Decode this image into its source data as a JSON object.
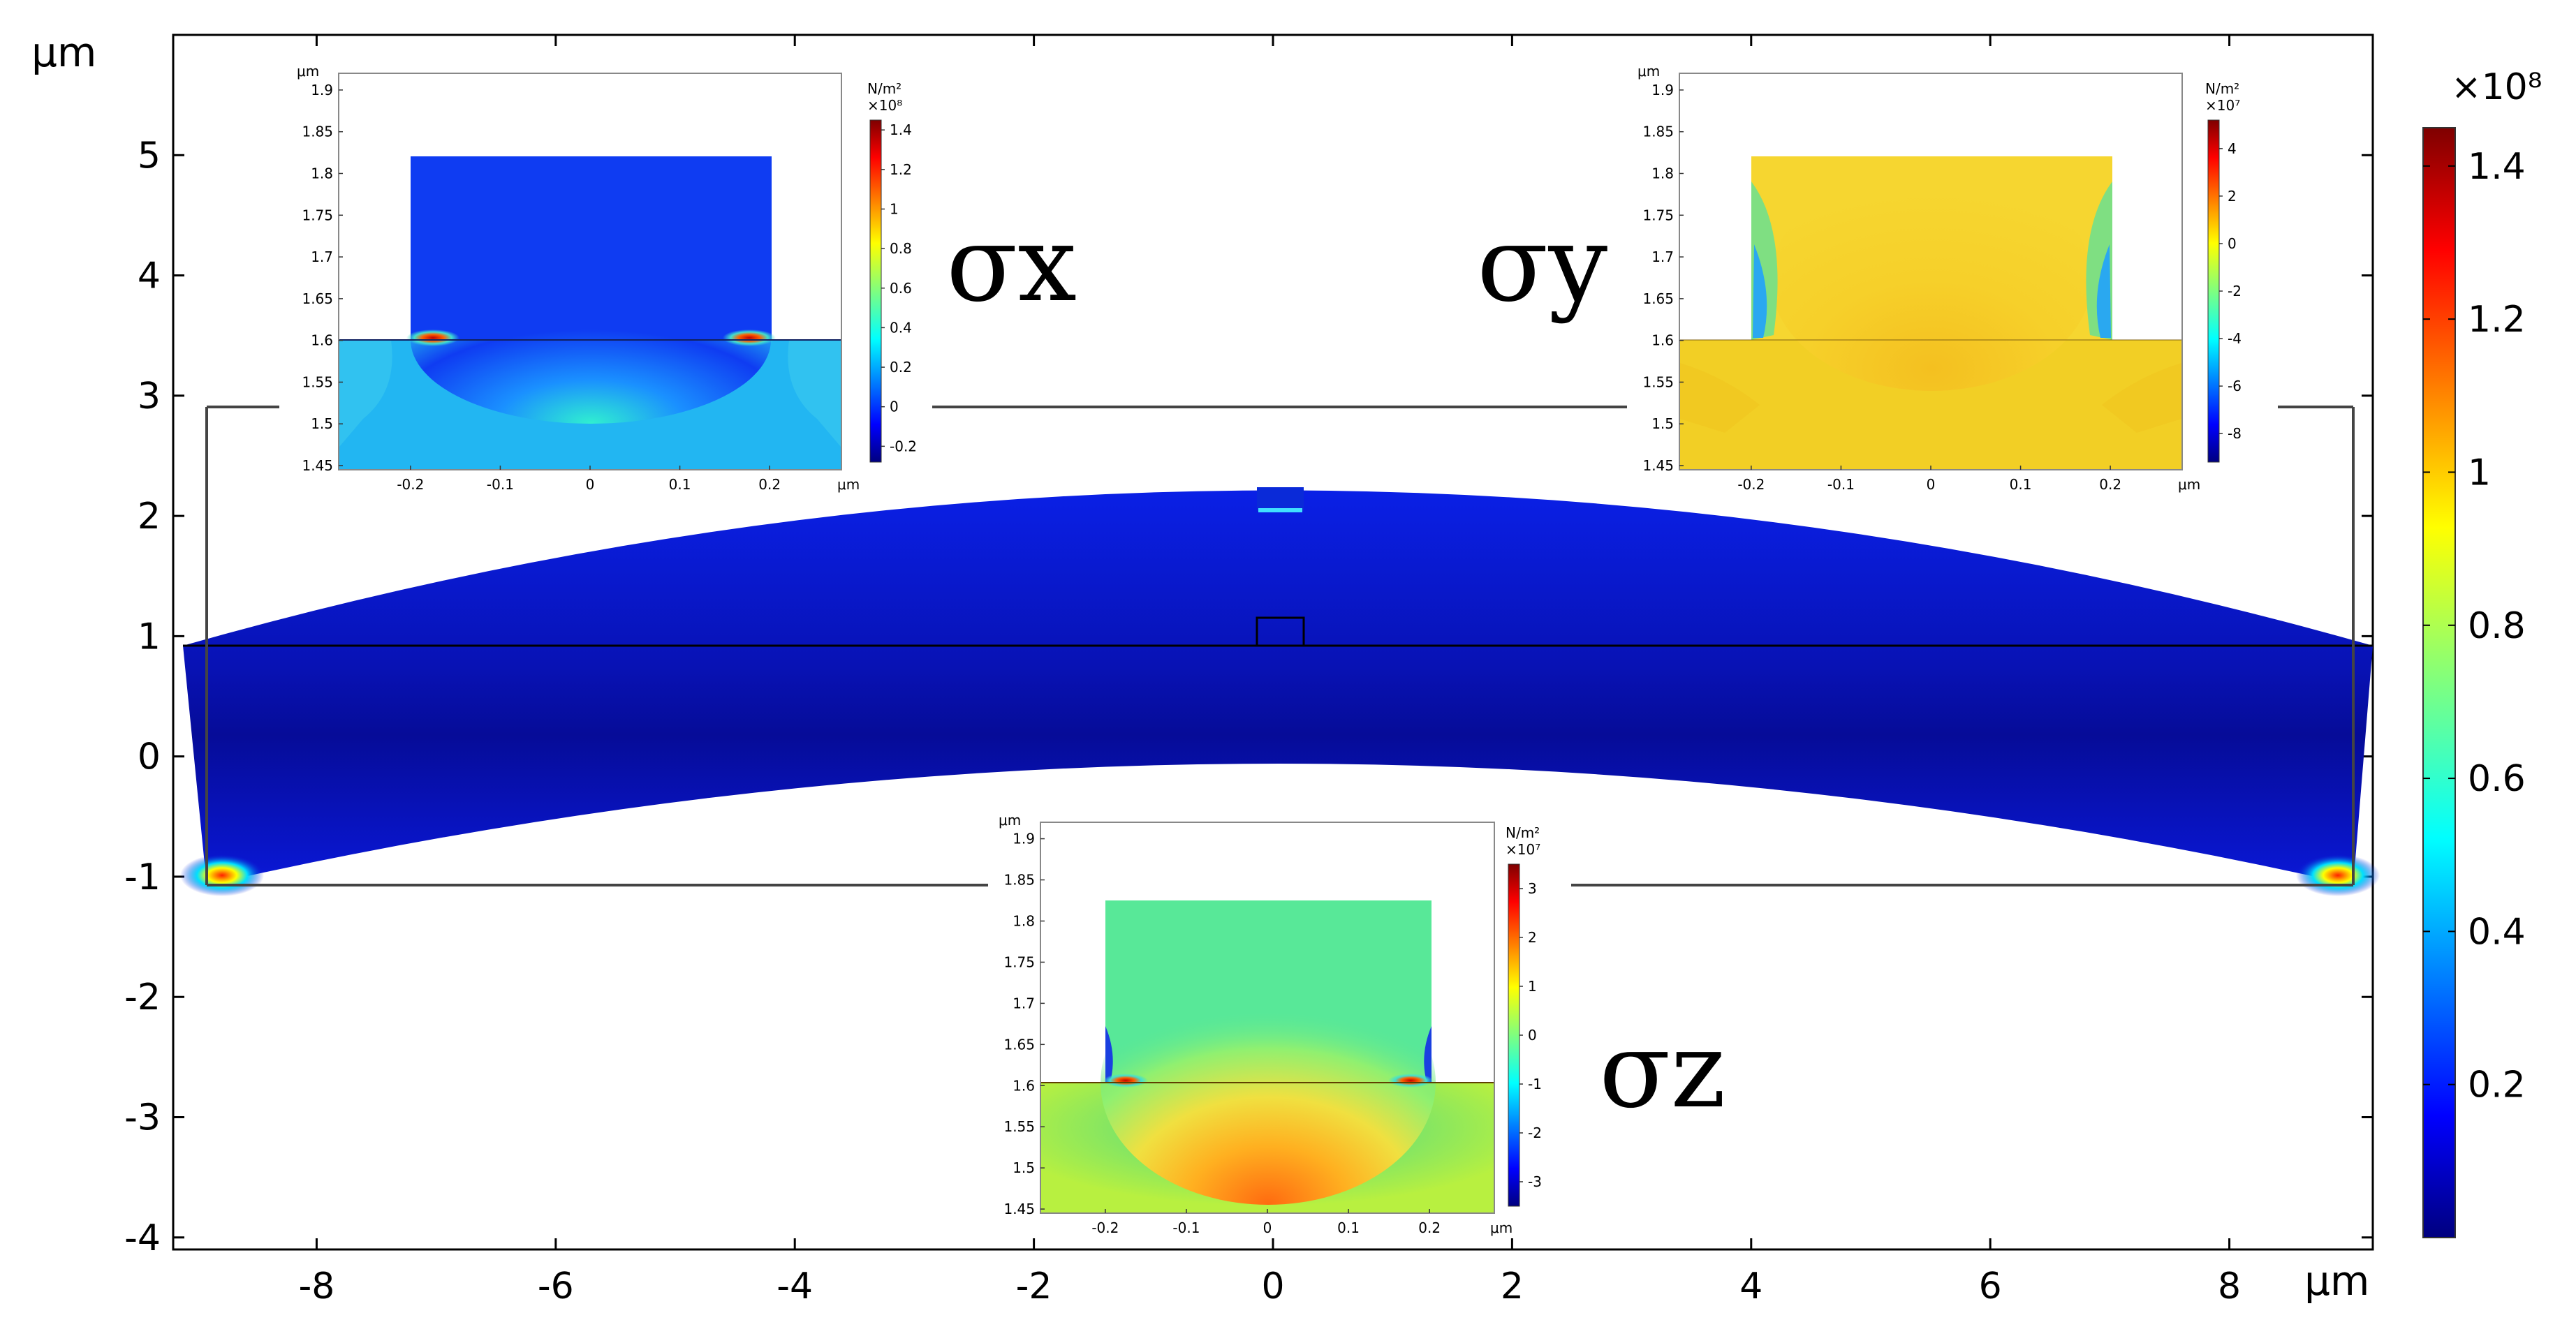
{
  "chart_data": {
    "type": "heatmap",
    "main": {
      "xlabel": "μm",
      "ylabel": "μm",
      "xlim": [
        -9.2,
        9.2
      ],
      "ylim": [
        -4.1,
        6.0
      ],
      "xticks": [
        "-8",
        "-6",
        "-4",
        "-2",
        "0",
        "2",
        "4",
        "6",
        "8"
      ],
      "yticks": [
        "-4",
        "-3",
        "-2",
        "-1",
        "0",
        "1",
        "2",
        "3",
        "4",
        "5"
      ],
      "colorbar": {
        "multiplier": "×10⁸",
        "range": [
          0.0,
          1.45
        ],
        "ticks": [
          "1.4",
          "1.2",
          "1",
          "0.8",
          "0.6",
          "0.4",
          "0.2"
        ]
      }
    },
    "insets": [
      {
        "id": "sigma-x",
        "label": "σx",
        "xticks": [
          "-0.2",
          "-0.1",
          "0",
          "0.1",
          "0.2"
        ],
        "yticks": [
          "1.9",
          "1.85",
          "1.8",
          "1.75",
          "1.7",
          "1.65",
          "1.6",
          "1.55",
          "1.5",
          "1.45"
        ],
        "axis_unit": "μm",
        "colorbar_unit": "N/m²",
        "colorbar_multiplier": "×10⁸",
        "colorbar_ticks": [
          "1.4",
          "1.2",
          "1",
          "0.8",
          "0.6",
          "0.4",
          "0.2",
          "0",
          "-0.2"
        ],
        "colorbar_range": [
          -0.28,
          1.45
        ]
      },
      {
        "id": "sigma-y",
        "label": "σy",
        "xticks": [
          "-0.2",
          "-0.1",
          "0",
          "0.1",
          "0.2"
        ],
        "yticks": [
          "1.9",
          "1.85",
          "1.8",
          "1.75",
          "1.7",
          "1.65",
          "1.6",
          "1.55",
          "1.5",
          "1.45"
        ],
        "axis_unit": "μm",
        "colorbar_unit": "N/m²",
        "colorbar_multiplier": "×10⁷",
        "colorbar_ticks": [
          "4",
          "2",
          "0",
          "-2",
          "-4",
          "-6",
          "-8"
        ],
        "colorbar_range": [
          -9.2,
          5.2
        ]
      },
      {
        "id": "sigma-z",
        "label": "σz",
        "xticks": [
          "-0.2",
          "-0.1",
          "0",
          "0.1",
          "0.2"
        ],
        "yticks": [
          "1.9",
          "1.85",
          "1.8",
          "1.75",
          "1.7",
          "1.65",
          "1.6",
          "1.55",
          "1.5",
          "1.45"
        ],
        "axis_unit": "μm",
        "colorbar_unit": "N/m²",
        "colorbar_multiplier": "×10⁷",
        "colorbar_ticks": [
          "3",
          "2",
          "1",
          "0",
          "-1",
          "-2",
          "-3"
        ],
        "colorbar_range": [
          -3.5,
          3.5
        ]
      }
    ]
  }
}
